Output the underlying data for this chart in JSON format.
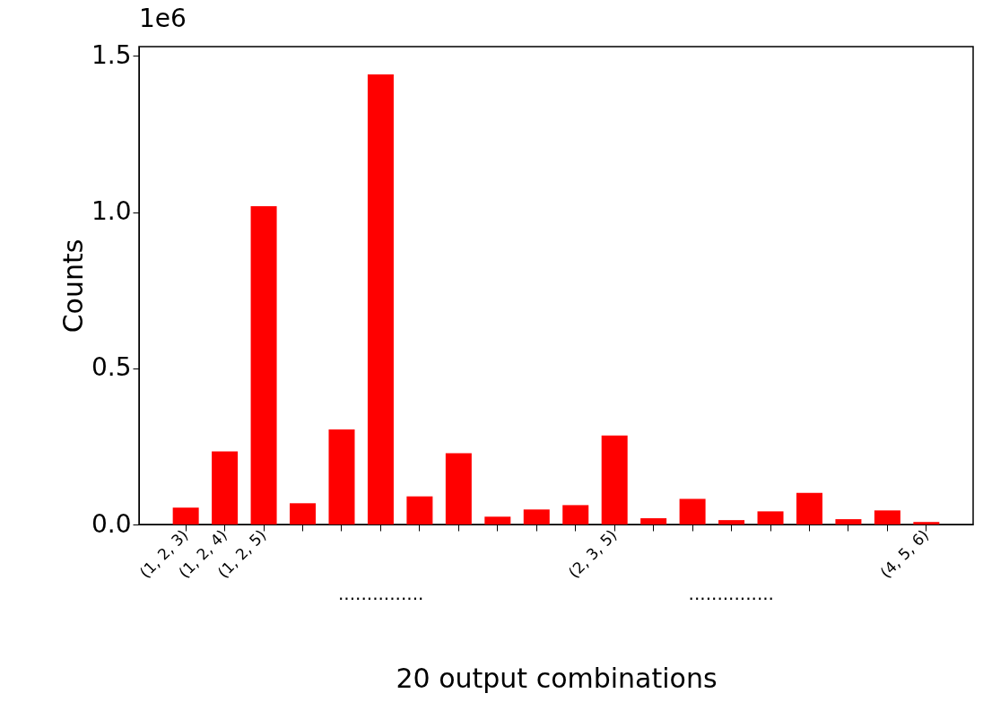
{
  "chart_data": {
    "type": "bar",
    "xlabel": "20 output combinations",
    "ylabel": "Counts",
    "categories": [
      "(1, 2, 3)",
      "(1, 2, 4)",
      "(1, 2, 5)",
      null,
      null,
      null,
      null,
      null,
      null,
      null,
      null,
      "(2, 3, 5)",
      null,
      null,
      null,
      null,
      null,
      null,
      null,
      "(4, 5, 6)"
    ],
    "values": [
      0.054,
      0.234,
      1.019,
      0.068,
      0.304,
      1.441,
      0.09,
      0.228,
      0.025,
      0.048,
      0.062,
      0.285,
      0.02,
      0.082,
      0.014,
      0.042,
      0.101,
      0.017,
      0.045,
      0.008
    ],
    "color": "#ff0000",
    "ylim": [
      0,
      1.53
    ],
    "yticks": [
      {
        "value": 0,
        "label": "0.0"
      },
      0.5,
      {
        "value": 1,
        "label": "1.0"
      },
      1.5
    ],
    "annotations": [
      "1e6",
      "...............",
      "..............."
    ],
    "grid": false
  }
}
